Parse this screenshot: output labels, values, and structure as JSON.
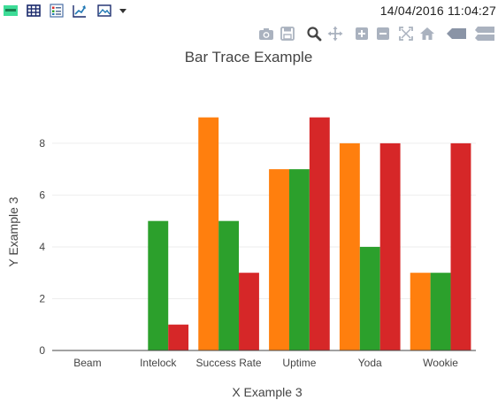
{
  "toolbar": {
    "icons": [
      "html-badge-icon",
      "table-icon",
      "list-icon",
      "chart-line-icon",
      "image-icon",
      "dropdown-icon"
    ],
    "timestamp": "14/04/2016 11:04:27"
  },
  "modebar": {
    "icons": [
      "camera-icon",
      "save-icon",
      "zoom-icon",
      "pan-icon",
      "zoom-in-icon",
      "zoom-out-icon",
      "autoscale-icon",
      "home-icon",
      "hover-closest-icon",
      "hover-compare-icon"
    ]
  },
  "colors": {
    "orange": "#ff7f0e",
    "green": "#2ca02c",
    "red": "#d62728",
    "grid": "#eeeeee",
    "axis": "#444444",
    "modebar_icon": "#aab2bf"
  },
  "chart_data": {
    "type": "bar",
    "title": "Bar Trace Example",
    "xlabel": "X Example 3",
    "ylabel": "Y Example 3",
    "categories": [
      "Beam",
      "Intelock",
      "Success Rate",
      "Uptime",
      "Yoda",
      "Wookie"
    ],
    "ylim": [
      0,
      9.5
    ],
    "yticks": [
      0,
      2,
      4,
      6,
      8
    ],
    "grid": true,
    "legend": "none",
    "series": [
      {
        "values": [
          0,
          0,
          9,
          7,
          8,
          3
        ],
        "color": "#ff7f0e"
      },
      {
        "values": [
          0,
          5,
          5,
          7,
          4,
          3
        ],
        "color": "#2ca02c"
      },
      {
        "values": [
          0,
          1,
          3,
          9,
          8,
          8
        ],
        "color": "#d62728"
      }
    ]
  }
}
